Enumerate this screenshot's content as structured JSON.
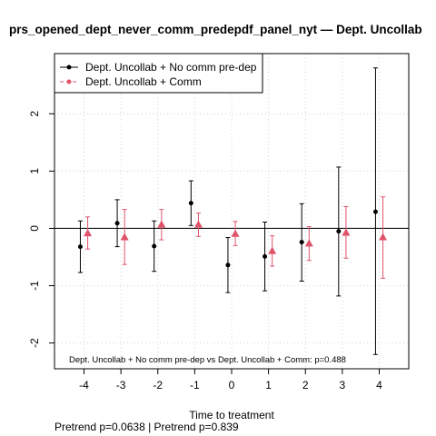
{
  "chart_data": {
    "type": "scatter",
    "title": "prs_opened_dept_never_comm_predepdf_panel_nyt — Dept. Uncollab",
    "xlabel": "Time to treatment",
    "ylabel": "",
    "xlim": [
      -4.8,
      4.8
    ],
    "ylim": [
      -2.45,
      3.05
    ],
    "x_ticks": [
      -4,
      -3,
      -2,
      -1,
      0,
      1,
      2,
      3,
      4
    ],
    "x_tick_labels": [
      "-4",
      "-3",
      "-2",
      "-1",
      "0",
      "1",
      "2",
      "3",
      "4"
    ],
    "y_ticks": [
      -2,
      -1,
      0,
      1,
      2
    ],
    "y_tick_labels": [
      "-2",
      "-1",
      "0",
      "1",
      "2"
    ],
    "grid": true,
    "legend_position": "top-left",
    "series": [
      {
        "name": "Dept. Uncollab + No comm pre-dep",
        "color": "#000000",
        "marker": "circle",
        "offset": -0.1,
        "x": [
          -4,
          -3,
          -2,
          -1,
          0,
          1,
          2,
          3,
          4
        ],
        "y": [
          -0.32,
          0.09,
          -0.31,
          0.44,
          -0.64,
          -0.49,
          -0.24,
          -0.05,
          0.29
        ],
        "lower": [
          -0.77,
          -0.32,
          -0.75,
          0.05,
          -1.12,
          -1.09,
          -0.92,
          -1.18,
          -2.2
        ],
        "upper": [
          0.13,
          0.5,
          0.13,
          0.83,
          -0.16,
          0.11,
          0.43,
          1.07,
          2.8
        ]
      },
      {
        "name": "Dept. Uncollab + Comm",
        "color": "#DF536B",
        "marker": "triangle",
        "offset": 0.1,
        "x": [
          -4,
          -3,
          -2,
          -1,
          0,
          1,
          2,
          3,
          4
        ],
        "y": [
          -0.08,
          -0.15,
          0.07,
          0.07,
          -0.09,
          -0.39,
          -0.26,
          -0.07,
          -0.15
        ],
        "lower": [
          -0.36,
          -0.63,
          -0.2,
          -0.14,
          -0.3,
          -0.66,
          -0.56,
          -0.52,
          -0.87
        ],
        "upper": [
          0.2,
          0.33,
          0.33,
          0.27,
          0.12,
          -0.13,
          0.03,
          0.38,
          0.55
        ]
      }
    ],
    "annotation": "Dept. Uncollab + No comm pre-dep vs Dept. Uncollab + Comm: p=0.488",
    "footer": "Pretrend p=0.0638 | Pretrend p=0.839"
  }
}
